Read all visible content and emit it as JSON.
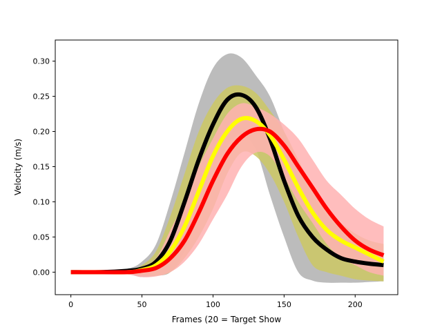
{
  "chart_data": {
    "type": "line",
    "title": "",
    "xlabel": "Frames (20 = Target Show",
    "ylabel": "Velocity (m/s)",
    "xlim": [
      -11,
      230
    ],
    "ylim": [
      -0.032,
      0.33
    ],
    "grid": false,
    "legend": "none",
    "xticks": [
      0,
      50,
      100,
      150,
      200
    ],
    "xtick_labels": [
      "0",
      "50",
      "100",
      "150",
      "200"
    ],
    "yticks": [
      0.0,
      0.05,
      0.1,
      0.15,
      0.2,
      0.25,
      0.3
    ],
    "ytick_labels": [
      "0.00",
      "0.05",
      "0.10",
      "0.15",
      "0.20",
      "0.25",
      "0.30"
    ],
    "series": [
      {
        "color": "#000000",
        "band_color": "#b0b0b0",
        "x": [
          0,
          20,
          40,
          50,
          60,
          70,
          80,
          90,
          100,
          110,
          120,
          130,
          140,
          150,
          160,
          170,
          180,
          190,
          200,
          210,
          220
        ],
        "y": [
          0,
          0,
          0.002,
          0.005,
          0.015,
          0.045,
          0.1,
          0.16,
          0.21,
          0.245,
          0.252,
          0.235,
          0.19,
          0.13,
          0.08,
          0.05,
          0.032,
          0.02,
          0.015,
          0.012,
          0.01
        ],
        "upper": [
          0,
          0,
          0.005,
          0.015,
          0.04,
          0.1,
          0.17,
          0.24,
          0.29,
          0.31,
          0.305,
          0.28,
          0.25,
          0.2,
          0.15,
          0.11,
          0.08,
          0.06,
          0.04,
          0.025,
          0.02
        ],
        "lower": [
          0,
          0,
          -0.003,
          -0.007,
          -0.005,
          0.0,
          0.03,
          0.08,
          0.13,
          0.18,
          0.195,
          0.175,
          0.11,
          0.05,
          0.0,
          -0.012,
          -0.015,
          -0.015,
          -0.015,
          -0.014,
          -0.013
        ]
      },
      {
        "color": "#ffff00",
        "band_color": "#cdc864",
        "x": [
          0,
          20,
          40,
          50,
          60,
          70,
          80,
          90,
          100,
          110,
          120,
          130,
          140,
          150,
          160,
          170,
          180,
          190,
          200,
          210,
          220
        ],
        "y": [
          0,
          0,
          0.0,
          0.003,
          0.01,
          0.03,
          0.065,
          0.115,
          0.165,
          0.2,
          0.218,
          0.215,
          0.195,
          0.16,
          0.12,
          0.085,
          0.06,
          0.045,
          0.035,
          0.025,
          0.015
        ],
        "upper": [
          0,
          0,
          0.003,
          0.01,
          0.03,
          0.08,
          0.14,
          0.2,
          0.24,
          0.262,
          0.265,
          0.255,
          0.23,
          0.2,
          0.16,
          0.12,
          0.09,
          0.07,
          0.055,
          0.045,
          0.04
        ],
        "lower": [
          0,
          0,
          -0.002,
          -0.004,
          -0.005,
          0.0,
          0.02,
          0.05,
          0.09,
          0.14,
          0.17,
          0.165,
          0.14,
          0.1,
          0.05,
          0.01,
          0.0,
          -0.005,
          -0.01,
          -0.012,
          -0.013
        ]
      },
      {
        "color": "#ff0000",
        "band_color": "#ffb2b2",
        "x": [
          0,
          20,
          40,
          50,
          60,
          70,
          80,
          90,
          100,
          110,
          120,
          130,
          140,
          150,
          160,
          170,
          180,
          190,
          200,
          210,
          220
        ],
        "y": [
          0,
          0,
          0.0,
          0.002,
          0.006,
          0.02,
          0.045,
          0.085,
          0.13,
          0.168,
          0.192,
          0.203,
          0.2,
          0.18,
          0.15,
          0.12,
          0.09,
          0.065,
          0.045,
          0.032,
          0.024
        ],
        "upper": [
          0,
          0,
          0.003,
          0.008,
          0.02,
          0.06,
          0.1,
          0.15,
          0.19,
          0.225,
          0.24,
          0.235,
          0.225,
          0.21,
          0.19,
          0.16,
          0.13,
          0.11,
          0.09,
          0.075,
          0.065
        ],
        "lower": [
          0,
          0,
          -0.003,
          -0.007,
          -0.006,
          0.0,
          0.015,
          0.04,
          0.075,
          0.11,
          0.15,
          0.17,
          0.165,
          0.135,
          0.1,
          0.07,
          0.04,
          0.02,
          0.01,
          0.0,
          -0.005
        ]
      }
    ]
  }
}
